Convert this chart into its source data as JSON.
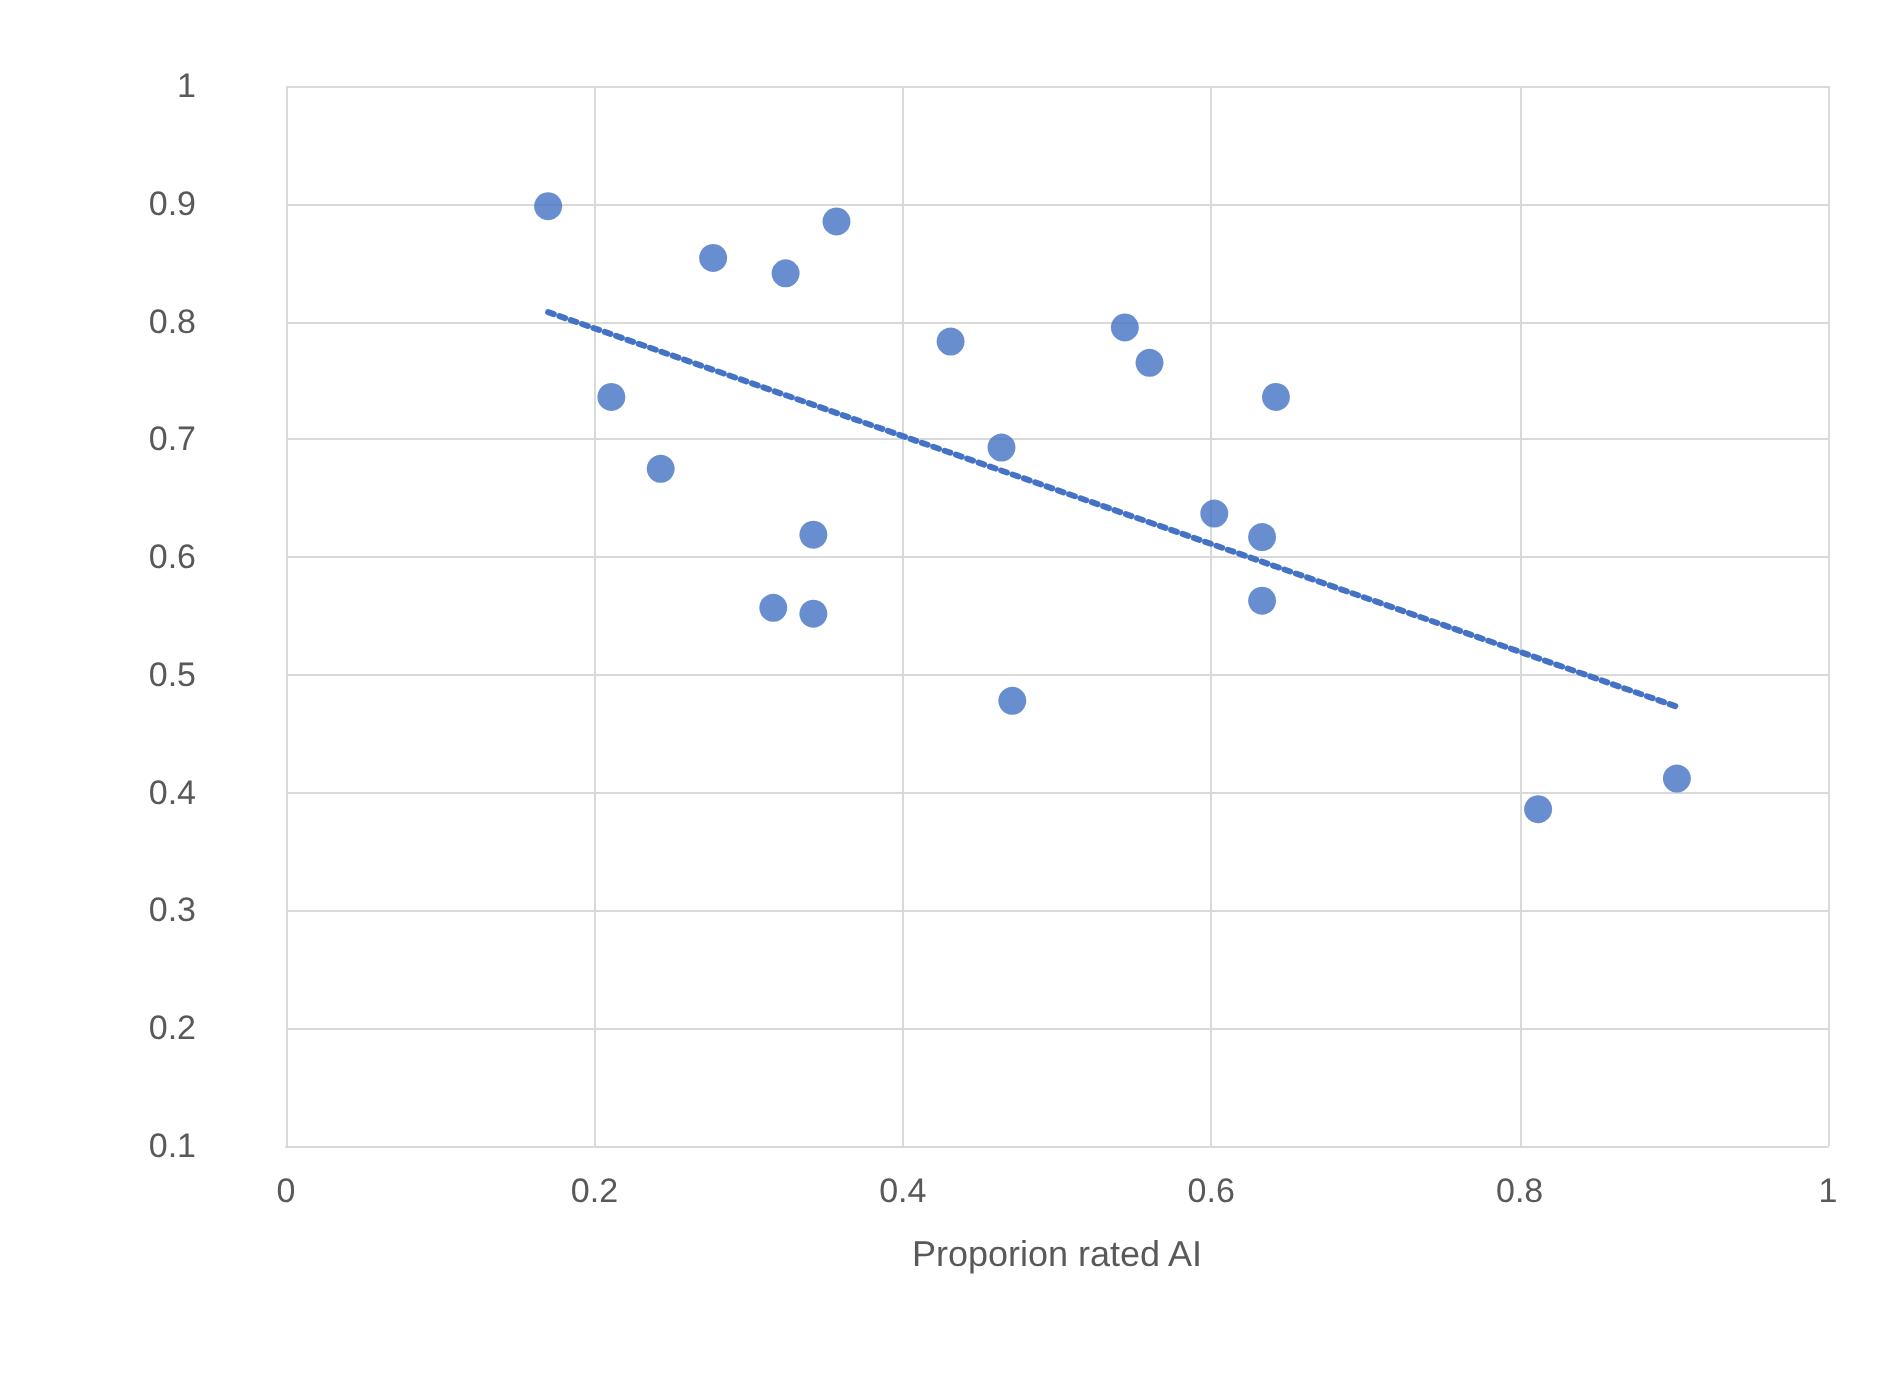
{
  "chart_data": {
    "type": "scatter",
    "xlabel": "Proporion rated AI",
    "xlim": [
      0,
      1
    ],
    "xticks": [
      0,
      0.2,
      0.4,
      0.6,
      0.8,
      1
    ],
    "ylim": [
      0.1,
      1
    ],
    "yticks": [
      0.1,
      0.2,
      0.3,
      0.4,
      0.5,
      0.6,
      0.7,
      0.8,
      0.9,
      1
    ],
    "grid": true,
    "marker": "circle",
    "series": [
      {
        "color": "#4472c4",
        "x": [
          0.17,
          0.277,
          0.357,
          0.324,
          0.211,
          0.243,
          0.431,
          0.464,
          0.544,
          0.56,
          0.642,
          0.342,
          0.316,
          0.342,
          0.471,
          0.602,
          0.633,
          0.633,
          0.812,
          0.902
        ],
        "values": [
          0.898,
          0.854,
          0.885,
          0.841,
          0.736,
          0.675,
          0.783,
          0.693,
          0.795,
          0.765,
          0.736,
          0.619,
          0.557,
          0.552,
          0.478,
          0.637,
          0.617,
          0.563,
          0.386,
          0.412
        ]
      },
      {
        "type": "line",
        "color": "#4472c4",
        "line_style": "dotted",
        "marker": "none",
        "x": [
          0.17,
          0.902
        ],
        "values": [
          0.808,
          0.473
        ]
      }
    ]
  }
}
